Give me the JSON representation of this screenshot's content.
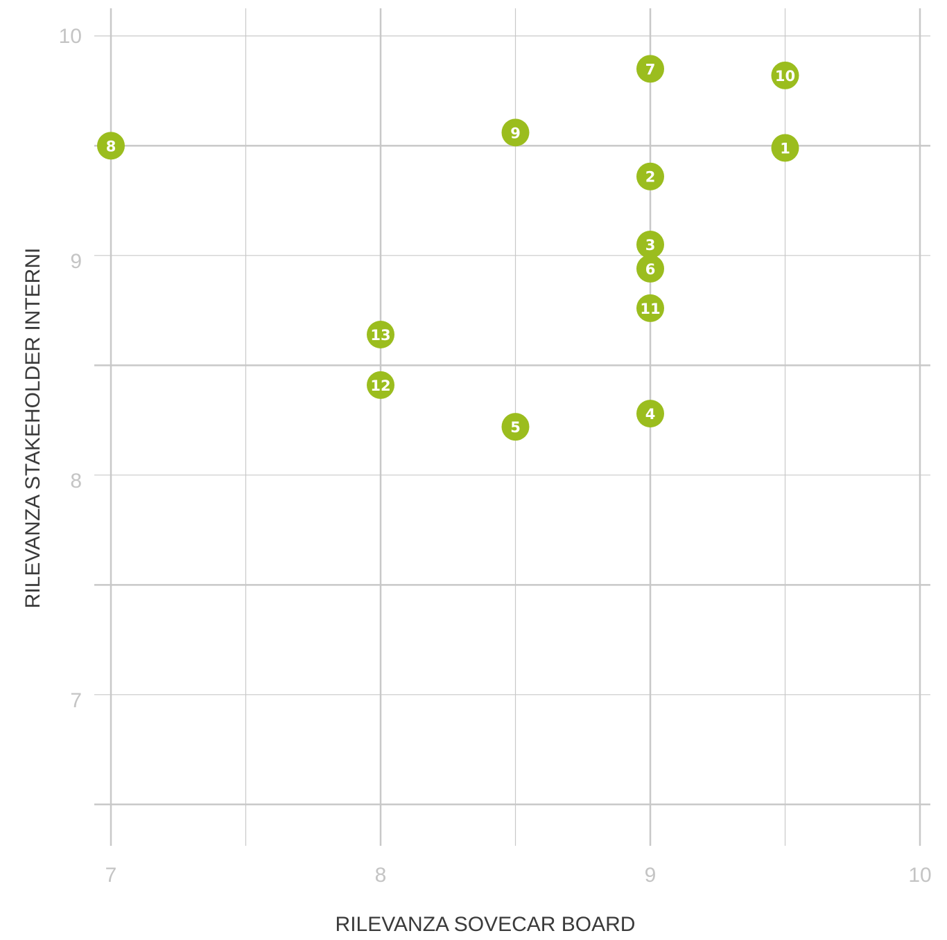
{
  "chart_data": {
    "type": "scatter",
    "xlabel": "RILEVANZA SOVECAR BOARD",
    "ylabel": "RILEVANZA STAKEHOLDER INTERNI",
    "xlim": [
      7,
      10
    ],
    "ylim": [
      6.4,
      10.05
    ],
    "x_ticks": [
      7,
      8,
      9,
      10
    ],
    "x_tick_labels": [
      "7",
      "8",
      "9",
      "10"
    ],
    "y_ticks": [
      7,
      8,
      9,
      10
    ],
    "y_tick_labels": [
      "7",
      "8",
      "9",
      "10"
    ],
    "grid": true,
    "colors": {
      "point": "#9bbd1e",
      "grid": "#c8c8c8",
      "tick": "#c4c4c4",
      "title": "#3a3a3a"
    },
    "points": [
      {
        "label": "1",
        "x": 9.5,
        "y": 9.49
      },
      {
        "label": "2",
        "x": 9.0,
        "y": 9.36
      },
      {
        "label": "3",
        "x": 9.0,
        "y": 9.05
      },
      {
        "label": "4",
        "x": 9.0,
        "y": 8.28
      },
      {
        "label": "5",
        "x": 8.5,
        "y": 8.22
      },
      {
        "label": "6",
        "x": 9.0,
        "y": 8.94
      },
      {
        "label": "7",
        "x": 9.0,
        "y": 9.85
      },
      {
        "label": "8",
        "x": 7.0,
        "y": 9.5
      },
      {
        "label": "9",
        "x": 8.5,
        "y": 9.56
      },
      {
        "label": "10",
        "x": 9.5,
        "y": 9.82
      },
      {
        "label": "11",
        "x": 9.0,
        "y": 8.76
      },
      {
        "label": "12",
        "x": 8.0,
        "y": 8.41
      },
      {
        "label": "13",
        "x": 8.0,
        "y": 8.64
      }
    ]
  }
}
